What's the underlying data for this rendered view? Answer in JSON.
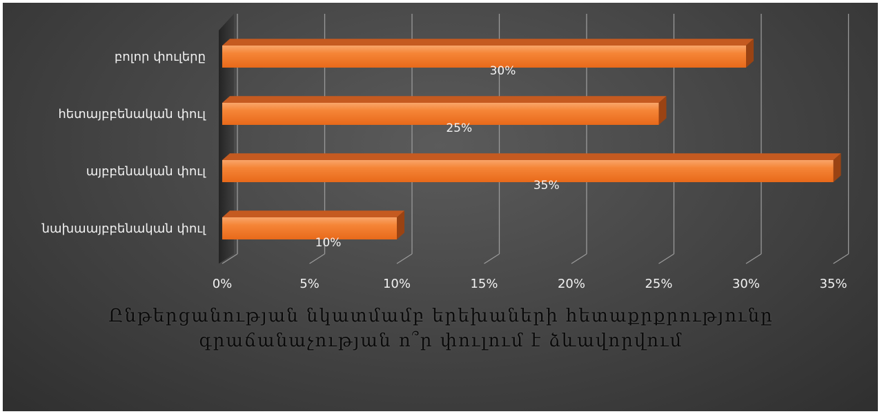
{
  "chart_data": {
    "type": "bar",
    "orientation": "horizontal",
    "style": "3d",
    "categories": [
      "բոլոր փուլերը",
      "հետայբբենական փուլ",
      "այբբենական փուլ",
      "նախաայբբենական փուլ"
    ],
    "values": [
      30,
      25,
      35,
      10
    ],
    "data_labels": [
      "30%",
      "25%",
      "35%",
      "10%"
    ],
    "x_ticks": [
      "0%",
      "5%",
      "10%",
      "15%",
      "20%",
      "25%",
      "30%",
      "35%"
    ],
    "xlim": [
      0,
      35
    ],
    "grid": true,
    "title_lines": [
      "Ընթերցանության նկատմամբ երեխաների հետաքրքրությունը",
      "գրաճանաչության ո՞ր փուլում է ձևավորվում"
    ],
    "bar_color": "#f47d2a",
    "background_color": "#3c3c3c"
  }
}
